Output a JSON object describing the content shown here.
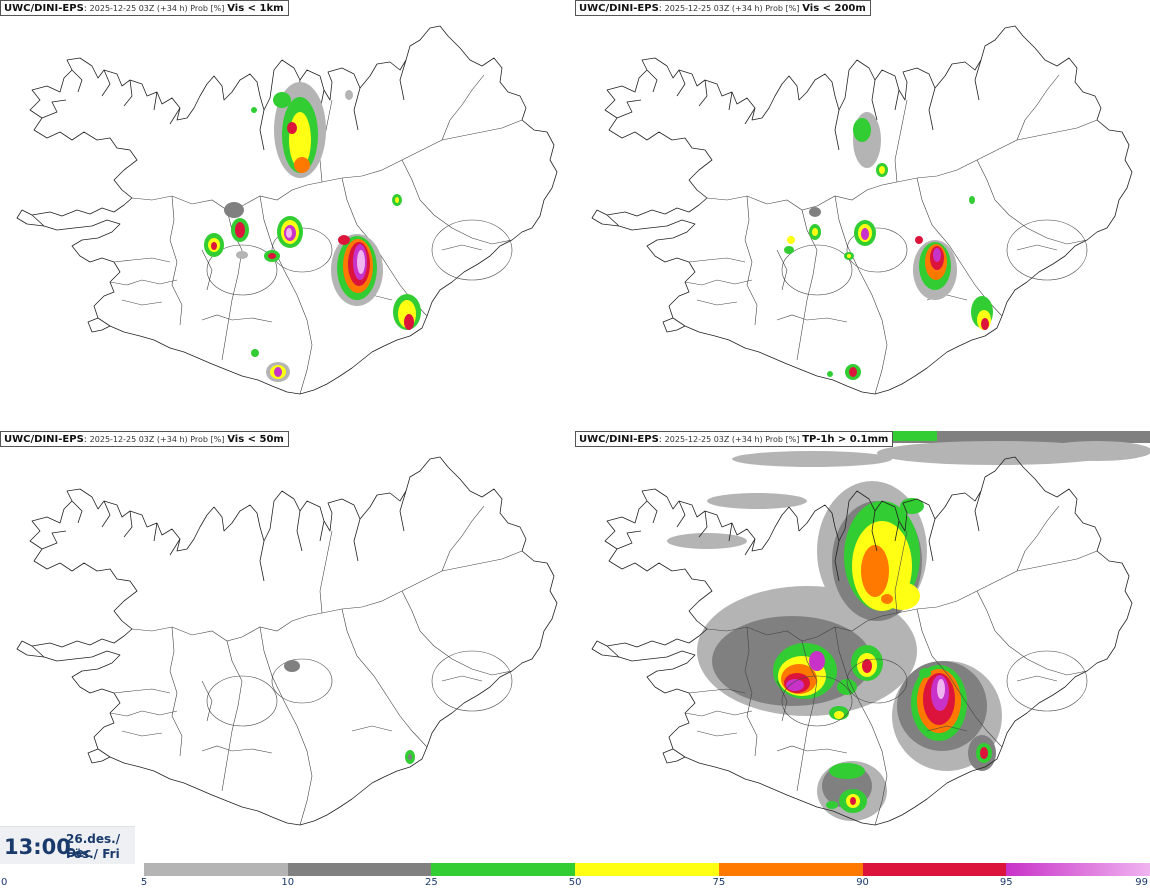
{
  "panels": [
    {
      "model": "UWC/DINI-EPS",
      "meta": "2025-12-25 03Z (+34 h) Prob [%]",
      "variable": "Vis < 1km"
    },
    {
      "model": "UWC/DINI-EPS",
      "meta": "2025-12-25 03Z (+34 h) Prob [%]",
      "variable": "Vis < 200m"
    },
    {
      "model": "UWC/DINI-EPS",
      "meta": "2025-12-25 03Z (+34 h) Prob [%]",
      "variable": "Vis < 50m"
    },
    {
      "model": "UWC/DINI-EPS",
      "meta": "2025-12-25 03Z (+34 h) Prob [%]",
      "variable": "TP-1h > 0.1mm"
    }
  ],
  "time": {
    "clock": "13:00",
    "date_line1": "26.des./ Dec",
    "date_line2": "Fös./ Fri"
  },
  "legend": {
    "ticks": [
      "0",
      "5",
      "10",
      "25",
      "50",
      "75",
      "90",
      "95",
      "99"
    ],
    "colors": [
      "#ffffff",
      "#b4b4b4",
      "#808080",
      "#32cd32",
      "#ffff14",
      "#ff7800",
      "#dc143c",
      "#c832c8",
      "#f0b4f0"
    ]
  }
}
